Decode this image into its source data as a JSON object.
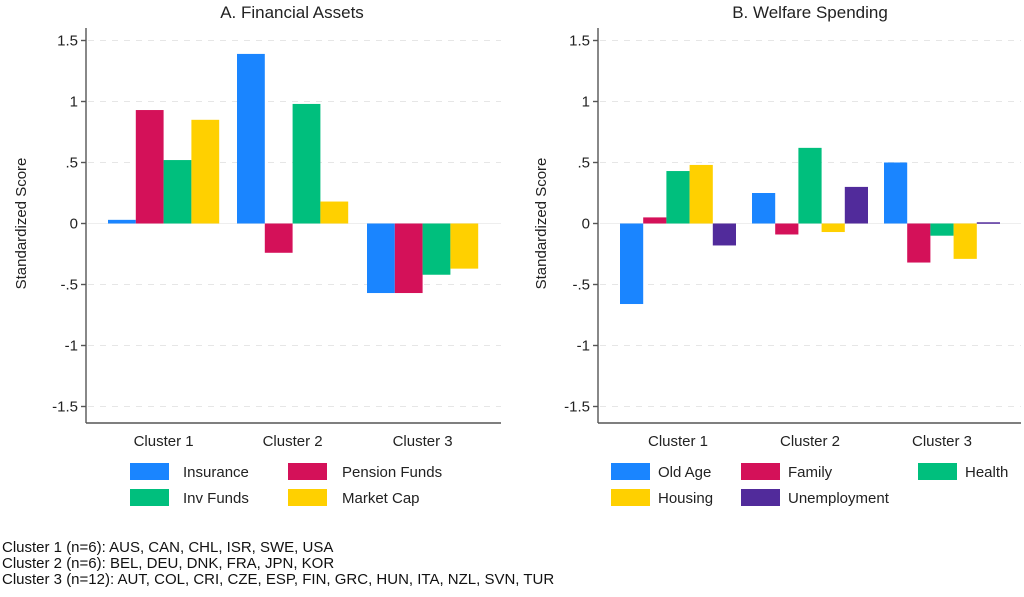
{
  "chart_data": [
    {
      "type": "bar",
      "title": "A. Financial Assets",
      "xlabel": "",
      "ylabel": "Standardized Score",
      "ylim": [
        -1.65,
        1.65
      ],
      "yticks": [
        1.5,
        1,
        0.5,
        0,
        -0.5,
        -1,
        -1.5
      ],
      "ytick_labels": [
        "1.5",
        "1",
        ".5",
        "0",
        "-.5",
        "-1",
        "-1.5"
      ],
      "grid": true,
      "legend_position": "bottom",
      "categories": [
        "Cluster 1",
        "Cluster 2",
        "Cluster 3"
      ],
      "series": [
        {
          "name": "Insurance",
          "color": "#1a85ff",
          "values": [
            0.03,
            1.39,
            -0.57
          ]
        },
        {
          "name": "Pension Funds",
          "color": "#d41159",
          "values": [
            0.93,
            -0.24,
            -0.57
          ]
        },
        {
          "name": "Inv Funds",
          "color": "#00bf7d",
          "values": [
            0.52,
            0.98,
            -0.42
          ]
        },
        {
          "name": "Market Cap",
          "color": "#ffd000",
          "values": [
            0.85,
            0.18,
            -0.37
          ]
        }
      ],
      "legend_order": [
        "Insurance",
        "Pension Funds",
        "Inv Funds",
        "Market Cap"
      ]
    },
    {
      "type": "bar",
      "title": "B. Welfare Spending",
      "xlabel": "",
      "ylabel": "Standardized Score",
      "ylim": [
        -1.65,
        1.65
      ],
      "yticks": [
        1.5,
        1,
        0.5,
        0,
        -0.5,
        -1,
        -1.5
      ],
      "ytick_labels": [
        "1.5",
        "1",
        ".5",
        "0",
        "-.5",
        "-1",
        "-1.5"
      ],
      "grid": true,
      "legend_position": "bottom",
      "categories": [
        "Cluster 1",
        "Cluster 2",
        "Cluster 3"
      ],
      "series": [
        {
          "name": "Old Age",
          "color": "#1a85ff",
          "values": [
            -0.66,
            0.25,
            0.5
          ]
        },
        {
          "name": "Family",
          "color": "#d41159",
          "values": [
            0.05,
            -0.09,
            -0.32
          ]
        },
        {
          "name": "Health",
          "color": "#00bf7d",
          "values": [
            0.43,
            0.62,
            -0.1
          ]
        },
        {
          "name": "Housing",
          "color": "#ffd000",
          "values": [
            0.48,
            -0.07,
            -0.29
          ]
        },
        {
          "name": "Unemployment",
          "color": "#512b9b",
          "values": [
            -0.18,
            0.3,
            0.01
          ]
        }
      ],
      "legend_order": [
        "Old Age",
        "Family",
        "Health",
        "Housing",
        "Unemployment"
      ]
    }
  ],
  "notes": [
    "Cluster 1 (n=6): AUS, CAN, CHL, ISR, SWE, USA",
    "Cluster 2 (n=6): BEL, DEU, DNK, FRA, JPN, KOR",
    "Cluster 3 (n=12): AUT, COL, CRI, CZE, ESP, FIN, GRC, HUN, ITA, NZL, SVN, TUR"
  ]
}
